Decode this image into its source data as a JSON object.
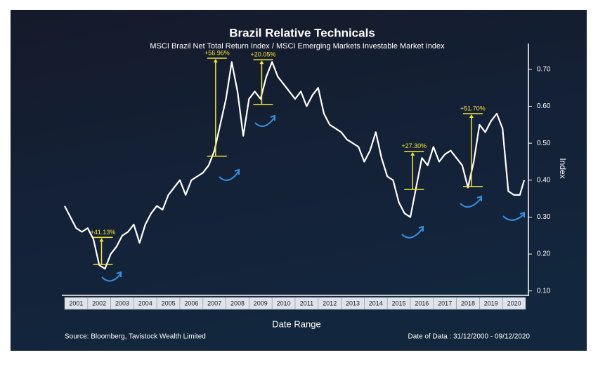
{
  "chart_data": {
    "type": "line",
    "title": "Brazil Relative Technicals",
    "subtitle": "MSCI Brazil Net Total Return Index / MSCI Emerging Markets Investable Market Index",
    "x_label": "Date Range",
    "y_label": "Index",
    "source": "Source: Bloomberg, Tavistock Wealth Limited",
    "date_note": "Date of Data : 31/12/2000 - 09/12/2020",
    "xlim": [
      2001,
      2021
    ],
    "xticks": [
      2001,
      2002,
      2003,
      2004,
      2005,
      2006,
      2007,
      2008,
      2009,
      2010,
      2011,
      2012,
      2013,
      2014,
      2015,
      2016,
      2017,
      2018,
      2019,
      2020
    ],
    "ylim": [
      0.09,
      0.77
    ],
    "yticks": [
      {
        "value": 0.1,
        "label": "0.10"
      },
      {
        "value": 0.2,
        "label": "0.20"
      },
      {
        "value": 0.3,
        "label": "0.30"
      },
      {
        "value": 0.4,
        "label": "0.40"
      },
      {
        "value": 0.5,
        "label": "0.50"
      },
      {
        "value": 0.6,
        "label": "0.60"
      },
      {
        "value": 0.7,
        "label": "0.70"
      }
    ],
    "series": [
      {
        "color": "#ffffff",
        "x": [
          2001.0,
          2001.25,
          2001.5,
          2001.75,
          2002.0,
          2002.25,
          2002.5,
          2002.75,
          2003.0,
          2003.25,
          2003.5,
          2003.75,
          2004.0,
          2004.25,
          2004.5,
          2004.75,
          2005.0,
          2005.25,
          2005.5,
          2005.75,
          2006.0,
          2006.25,
          2006.5,
          2006.75,
          2007.0,
          2007.25,
          2007.5,
          2007.75,
          2008.0,
          2008.25,
          2008.5,
          2008.75,
          2009.0,
          2009.25,
          2009.5,
          2009.75,
          2010.0,
          2010.25,
          2010.5,
          2010.75,
          2011.0,
          2011.25,
          2011.5,
          2011.75,
          2012.0,
          2012.25,
          2012.5,
          2012.75,
          2013.0,
          2013.25,
          2013.5,
          2013.75,
          2014.0,
          2014.25,
          2014.5,
          2014.75,
          2015.0,
          2015.25,
          2015.5,
          2015.75,
          2016.0,
          2016.25,
          2016.5,
          2016.75,
          2017.0,
          2017.25,
          2017.5,
          2017.75,
          2018.0,
          2018.25,
          2018.5,
          2018.75,
          2019.0,
          2019.25,
          2019.5,
          2019.75,
          2020.0,
          2020.25,
          2020.5,
          2020.75,
          2020.94
        ],
        "values": [
          0.33,
          0.3,
          0.27,
          0.26,
          0.27,
          0.24,
          0.17,
          0.16,
          0.2,
          0.22,
          0.25,
          0.26,
          0.28,
          0.23,
          0.28,
          0.31,
          0.33,
          0.32,
          0.36,
          0.38,
          0.4,
          0.36,
          0.4,
          0.41,
          0.42,
          0.44,
          0.48,
          0.55,
          0.62,
          0.72,
          0.64,
          0.52,
          0.62,
          0.64,
          0.62,
          0.68,
          0.72,
          0.68,
          0.66,
          0.64,
          0.62,
          0.64,
          0.6,
          0.63,
          0.65,
          0.58,
          0.55,
          0.54,
          0.53,
          0.51,
          0.5,
          0.49,
          0.45,
          0.48,
          0.53,
          0.46,
          0.41,
          0.4,
          0.34,
          0.31,
          0.3,
          0.38,
          0.46,
          0.44,
          0.49,
          0.45,
          0.47,
          0.48,
          0.46,
          0.44,
          0.38,
          0.45,
          0.55,
          0.53,
          0.56,
          0.58,
          0.54,
          0.37,
          0.36,
          0.36,
          0.4
        ]
      }
    ],
    "annotations": [
      {
        "label": "+41.13%",
        "x": 2002.6,
        "from": 0.172,
        "to": 0.245
      },
      {
        "label": "+56.96%",
        "x": 2007.55,
        "from": 0.465,
        "to": 0.73
      },
      {
        "label": "+20.05%",
        "x": 2009.55,
        "from": 0.605,
        "to": 0.726
      },
      {
        "label": "+27.30%",
        "x": 2016.1,
        "from": 0.375,
        "to": 0.478
      },
      {
        "label": "+51.70%",
        "x": 2018.65,
        "from": 0.383,
        "to": 0.58
      }
    ],
    "annotation_color": "#f4e634"
  }
}
